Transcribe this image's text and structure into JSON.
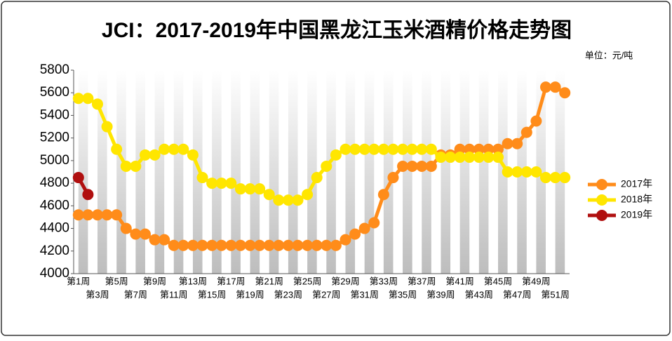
{
  "chart_data": {
    "type": "line",
    "title": "JCI：2017-2019年中国黑龙江玉米酒精价格走势图",
    "unit": "单位：元/吨",
    "categories": [
      "第1周",
      null,
      "第3周",
      null,
      "第5周",
      null,
      "第7周",
      null,
      "第9周",
      null,
      "第11周",
      null,
      "第13周",
      null,
      "第15周",
      null,
      "第17周",
      null,
      "第19周",
      null,
      "第21周",
      null,
      "第23周",
      null,
      "第25周",
      null,
      "第27周",
      null,
      "第29周",
      null,
      "第31周",
      null,
      "第33周",
      null,
      "第35周",
      null,
      "第37周",
      null,
      "第39周",
      null,
      "第41周",
      null,
      "第43周",
      null,
      "第45周",
      null,
      "第47周",
      null,
      "第49周",
      null,
      "第51周",
      null
    ],
    "series": [
      {
        "name": "2017年",
        "color": "#ff8c1a",
        "values": [
          4520,
          4520,
          4520,
          4520,
          4520,
          4400,
          4350,
          4350,
          4300,
          4300,
          4250,
          4250,
          4250,
          4250,
          4250,
          4250,
          4250,
          4250,
          4250,
          4250,
          4250,
          4250,
          4250,
          4250,
          4250,
          4250,
          4250,
          4250,
          4300,
          4350,
          4400,
          4450,
          4700,
          4850,
          4950,
          4950,
          4950,
          4950,
          5050,
          5050,
          5100,
          5100,
          5100,
          5100,
          5100,
          5150,
          5150,
          5250,
          5350,
          5650,
          5650,
          5600
        ]
      },
      {
        "name": "2018年",
        "color": "#ffe600",
        "values": [
          5550,
          5550,
          5500,
          5300,
          5100,
          4950,
          4950,
          5050,
          5050,
          5100,
          5100,
          5100,
          5050,
          4850,
          4800,
          4800,
          4800,
          4750,
          4750,
          4750,
          4700,
          4650,
          4650,
          4650,
          4700,
          4850,
          4950,
          5050,
          5100,
          5100,
          5100,
          5100,
          5100,
          5100,
          5100,
          5100,
          5100,
          5100,
          5030,
          5030,
          5030,
          5030,
          5030,
          5030,
          5030,
          4900,
          4900,
          4900,
          4900,
          4850,
          4850,
          4850
        ]
      },
      {
        "name": "2019年",
        "color": "#b01010",
        "values": [
          4850,
          4700,
          null,
          null,
          null,
          null,
          null,
          null,
          null,
          null,
          null,
          null,
          null,
          null,
          null,
          null,
          null,
          null,
          null,
          null,
          null,
          null,
          null,
          null,
          null,
          null,
          null,
          null,
          null,
          null,
          null,
          null,
          null,
          null,
          null,
          null,
          null,
          null,
          null,
          null,
          null,
          null,
          null,
          null,
          null,
          null,
          null,
          null,
          null,
          null,
          null,
          null
        ]
      }
    ],
    "ylim": [
      4000,
      5800
    ],
    "yticks": [
      4000,
      4200,
      4400,
      4600,
      4800,
      5000,
      5200,
      5400,
      5600,
      5800
    ],
    "legend": "right"
  }
}
